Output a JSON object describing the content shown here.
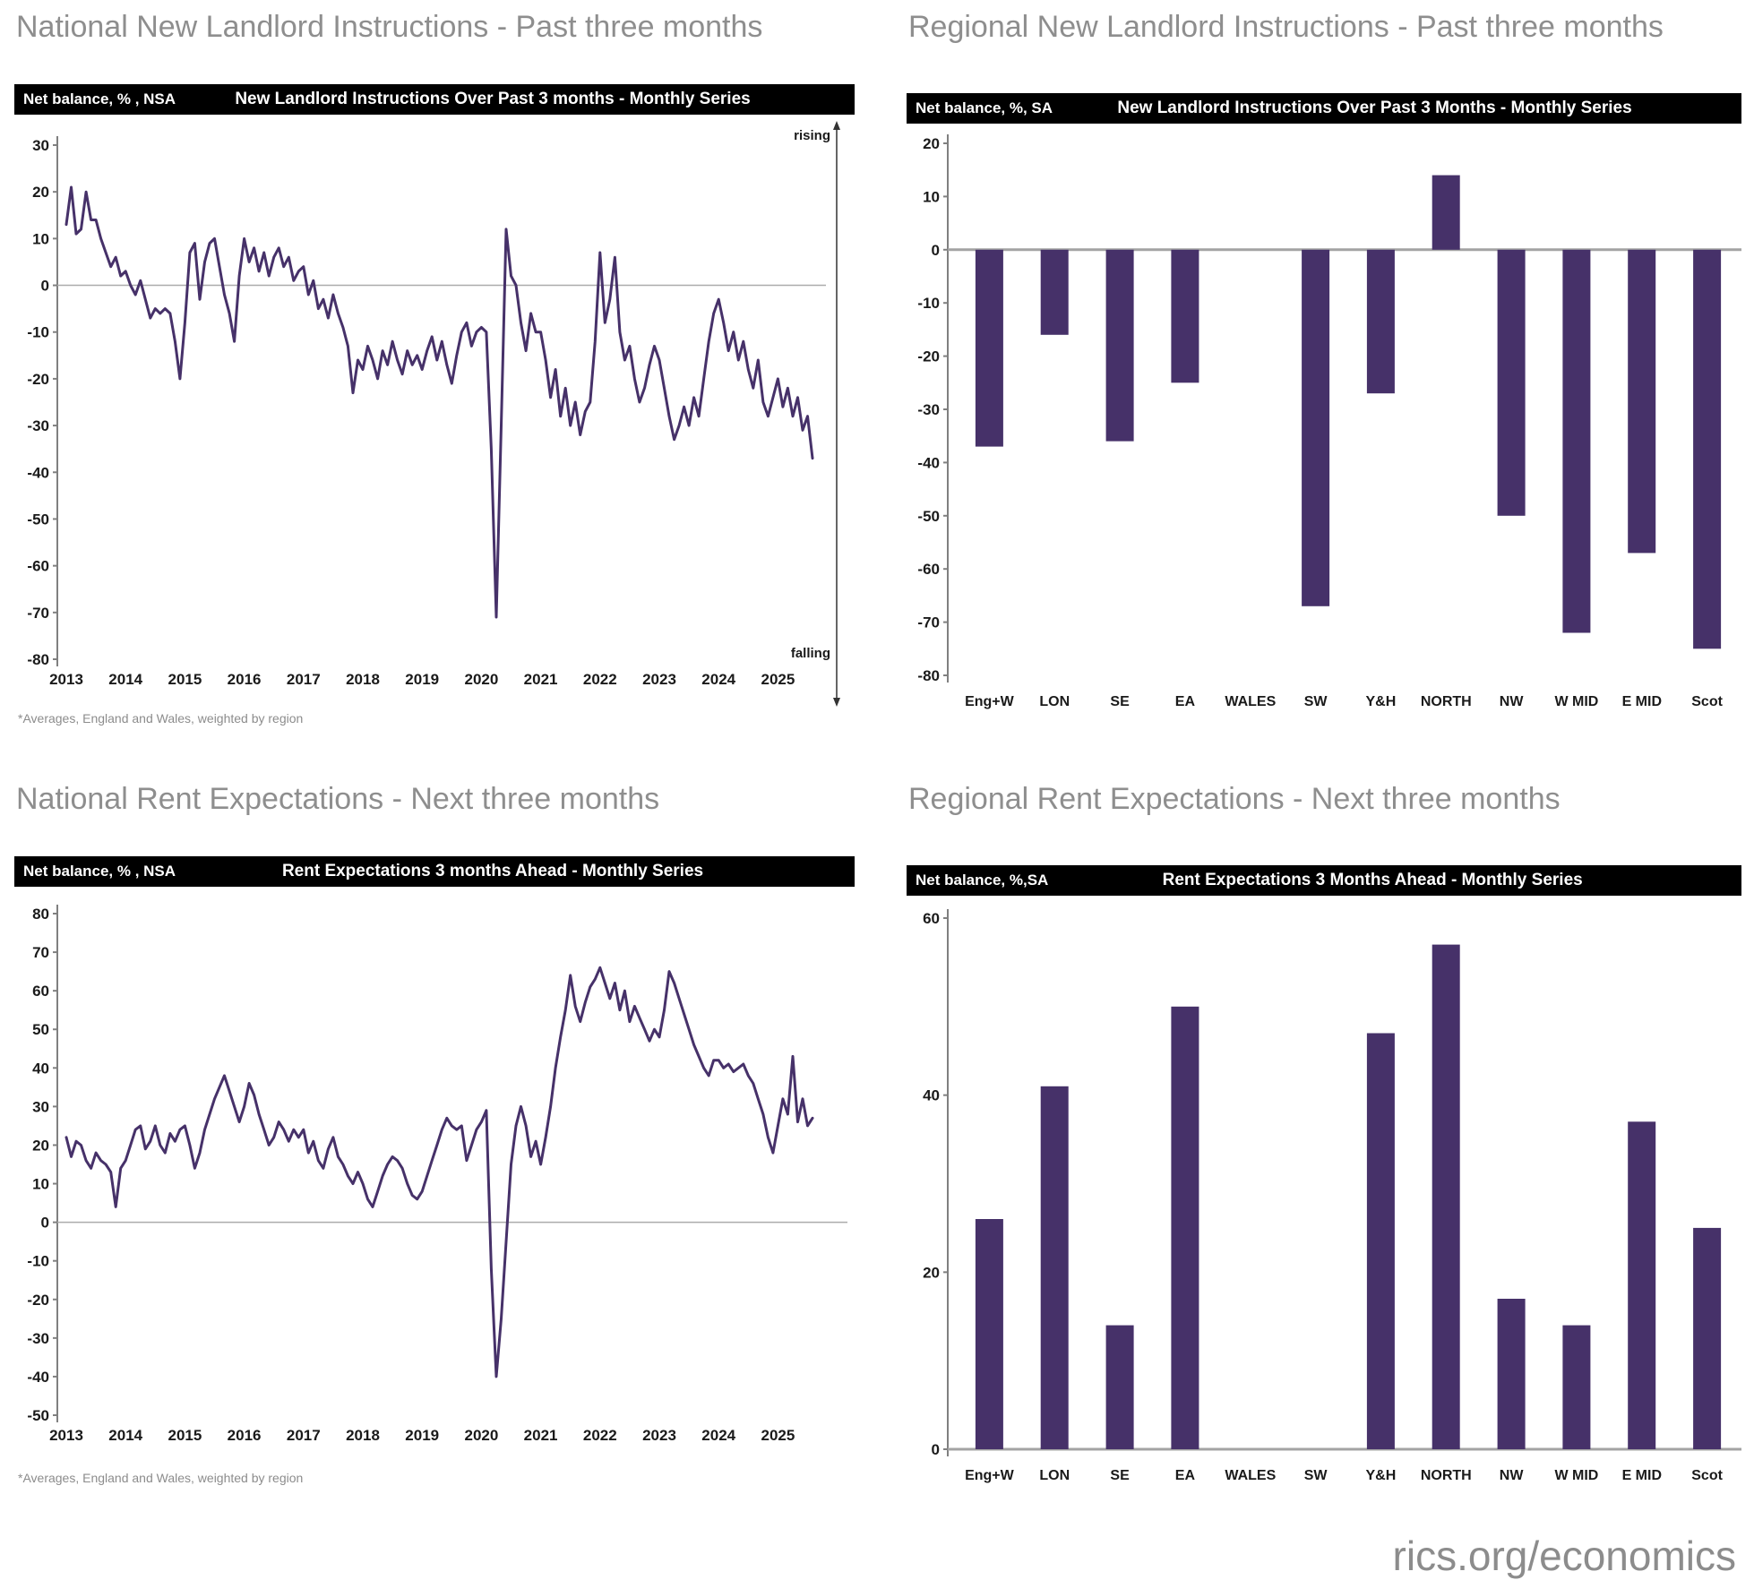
{
  "page": {
    "background": "#ffffff",
    "footer_link": "rics.org/economics"
  },
  "colors": {
    "series": "#463169",
    "bar": "#463169",
    "title_text": "#8e8e8e",
    "header_bg": "#000000",
    "header_text": "#ffffff",
    "axis": "#808080",
    "zero_line": "#ababab",
    "baseline": "#a3a3a3",
    "tick_text": "#1a1a1a",
    "footnote_text": "#8c8c8c"
  },
  "chart_data": [
    {
      "id": "national-new-landlord-instructions",
      "type": "line",
      "title": "National New Landlord Instructions - Past three months",
      "header": {
        "left": "Net balance, % , NSA",
        "title": "New Landlord Instructions Over Past 3 months - Monthly Series"
      },
      "footnote": "*Averages, England and Wales, weighted by region",
      "ylim": [
        -80,
        30
      ],
      "yticks": [
        30,
        20,
        10,
        0,
        -10,
        -20,
        -30,
        -40,
        -50,
        -60,
        -70,
        -80
      ],
      "x_ticks": [
        "2013",
        "2014",
        "2015",
        "2016",
        "2017",
        "2018",
        "2019",
        "2020",
        "2021",
        "2022",
        "2023",
        "2024",
        "2025"
      ],
      "x_start_year": 2013,
      "points_per_year": 12,
      "annotations": {
        "rising": "rising",
        "falling": "falling"
      },
      "legend_position": "none",
      "grid": "zero-line-only",
      "values": [
        13,
        21,
        11,
        12,
        20,
        14,
        14,
        10,
        7,
        4,
        6,
        2,
        3,
        0,
        -2,
        1,
        -3,
        -7,
        -5,
        -6,
        -5,
        -6,
        -12,
        -20,
        -8,
        7,
        9,
        -3,
        5,
        9,
        10,
        4,
        -2,
        -6,
        -12,
        2,
        10,
        5,
        8,
        3,
        7,
        2,
        6,
        8,
        4,
        6,
        1,
        3,
        4,
        -2,
        1,
        -5,
        -3,
        -7,
        -2,
        -6,
        -9,
        -13,
        -23,
        -16,
        -18,
        -13,
        -16,
        -20,
        -14,
        -17,
        -12,
        -16,
        -19,
        -14,
        -17,
        -15,
        -18,
        -14,
        -11,
        -16,
        -12,
        -17,
        -21,
        -15,
        -10,
        -8,
        -13,
        -10,
        -9,
        -10,
        -35,
        -71,
        -30,
        12,
        2,
        0,
        -8,
        -14,
        -6,
        -10,
        -10,
        -16,
        -24,
        -18,
        -28,
        -22,
        -30,
        -25,
        -32,
        -27,
        -25,
        -12,
        7,
        -8,
        -3,
        6,
        -10,
        -16,
        -13,
        -20,
        -25,
        -22,
        -17,
        -13,
        -16,
        -22,
        -28,
        -33,
        -30,
        -26,
        -30,
        -24,
        -28,
        -20,
        -12,
        -6,
        -3,
        -8,
        -14,
        -10,
        -16,
        -12,
        -18,
        -22,
        -16,
        -25,
        -28,
        -24,
        -20,
        -26,
        -22,
        -28,
        -24,
        -31,
        -28,
        -37
      ]
    },
    {
      "id": "regional-new-landlord-instructions",
      "type": "bar",
      "title": "Regional New Landlord Instructions - Past three months",
      "header": {
        "left": "Net balance, %, SA",
        "title": "New Landlord Instructions Over Past 3 Months - Monthly Series"
      },
      "ylim": [
        -80,
        20
      ],
      "yticks": [
        20,
        10,
        0,
        -10,
        -20,
        -30,
        -40,
        -50,
        -60,
        -70,
        -80
      ],
      "categories": [
        "Eng+W",
        "LON",
        "SE",
        "EA",
        "WALES",
        "SW",
        "Y&H",
        "NORTH",
        "NW",
        "W MID",
        "E MID",
        "Scot"
      ],
      "values": [
        -37,
        -16,
        -36,
        -25,
        null,
        -67,
        -27,
        14,
        -50,
        -72,
        -57,
        -75
      ],
      "legend_position": "none",
      "grid": "zero-line-only"
    },
    {
      "id": "national-rent-expectations",
      "type": "line",
      "title": "National Rent Expectations - Next three months",
      "header": {
        "left": "Net balance, % , NSA",
        "title": "Rent Expectations 3 months Ahead -  Monthly Series"
      },
      "footnote": "*Averages, England and Wales, weighted by region",
      "ylim": [
        -50,
        80
      ],
      "yticks": [
        80,
        70,
        60,
        50,
        40,
        30,
        20,
        10,
        0,
        -10,
        -20,
        -30,
        -40,
        -50
      ],
      "x_ticks": [
        "2013",
        "2014",
        "2015",
        "2016",
        "2017",
        "2018",
        "2019",
        "2020",
        "2021",
        "2022",
        "2023",
        "2024",
        "2025"
      ],
      "x_start_year": 2013,
      "points_per_year": 12,
      "legend_position": "none",
      "grid": "zero-line-only",
      "values": [
        22,
        17,
        21,
        20,
        16,
        14,
        18,
        16,
        15,
        13,
        4,
        14,
        16,
        20,
        24,
        25,
        19,
        21,
        25,
        20,
        18,
        23,
        21,
        24,
        25,
        20,
        14,
        18,
        24,
        28,
        32,
        35,
        38,
        34,
        30,
        26,
        30,
        36,
        33,
        28,
        24,
        20,
        22,
        26,
        24,
        21,
        24,
        22,
        24,
        18,
        21,
        16,
        14,
        19,
        22,
        17,
        15,
        12,
        10,
        13,
        10,
        6,
        4,
        8,
        12,
        15,
        17,
        16,
        14,
        10,
        7,
        6,
        8,
        12,
        16,
        20,
        24,
        27,
        25,
        24,
        25,
        16,
        20,
        24,
        26,
        29,
        -12,
        -40,
        -25,
        -5,
        15,
        25,
        30,
        25,
        17,
        21,
        15,
        22,
        30,
        40,
        48,
        55,
        64,
        56,
        52,
        57,
        61,
        63,
        66,
        62,
        58,
        62,
        55,
        60,
        52,
        56,
        53,
        50,
        47,
        50,
        48,
        55,
        65,
        62,
        58,
        54,
        50,
        46,
        43,
        40,
        38,
        42,
        42,
        40,
        41,
        39,
        40,
        41,
        38,
        36,
        32,
        28,
        22,
        18,
        25,
        32,
        28,
        43,
        26,
        32,
        25,
        27
      ]
    },
    {
      "id": "regional-rent-expectations",
      "type": "bar",
      "title": "Regional Rent Expectations - Next three months",
      "header": {
        "left": "Net balance, %,SA",
        "title": "Rent Expectations 3 Months Ahead - Monthly Series"
      },
      "ylim": [
        0,
        60
      ],
      "yticks": [
        60,
        40,
        20,
        0
      ],
      "categories": [
        "Eng+W",
        "LON",
        "SE",
        "EA",
        "WALES",
        "SW",
        "Y&H",
        "NORTH",
        "NW",
        "W MID",
        "E MID",
        "Scot"
      ],
      "values": [
        26,
        41,
        14,
        50,
        null,
        null,
        47,
        57,
        17,
        14,
        37,
        25
      ],
      "legend_position": "none",
      "grid": "none"
    }
  ]
}
